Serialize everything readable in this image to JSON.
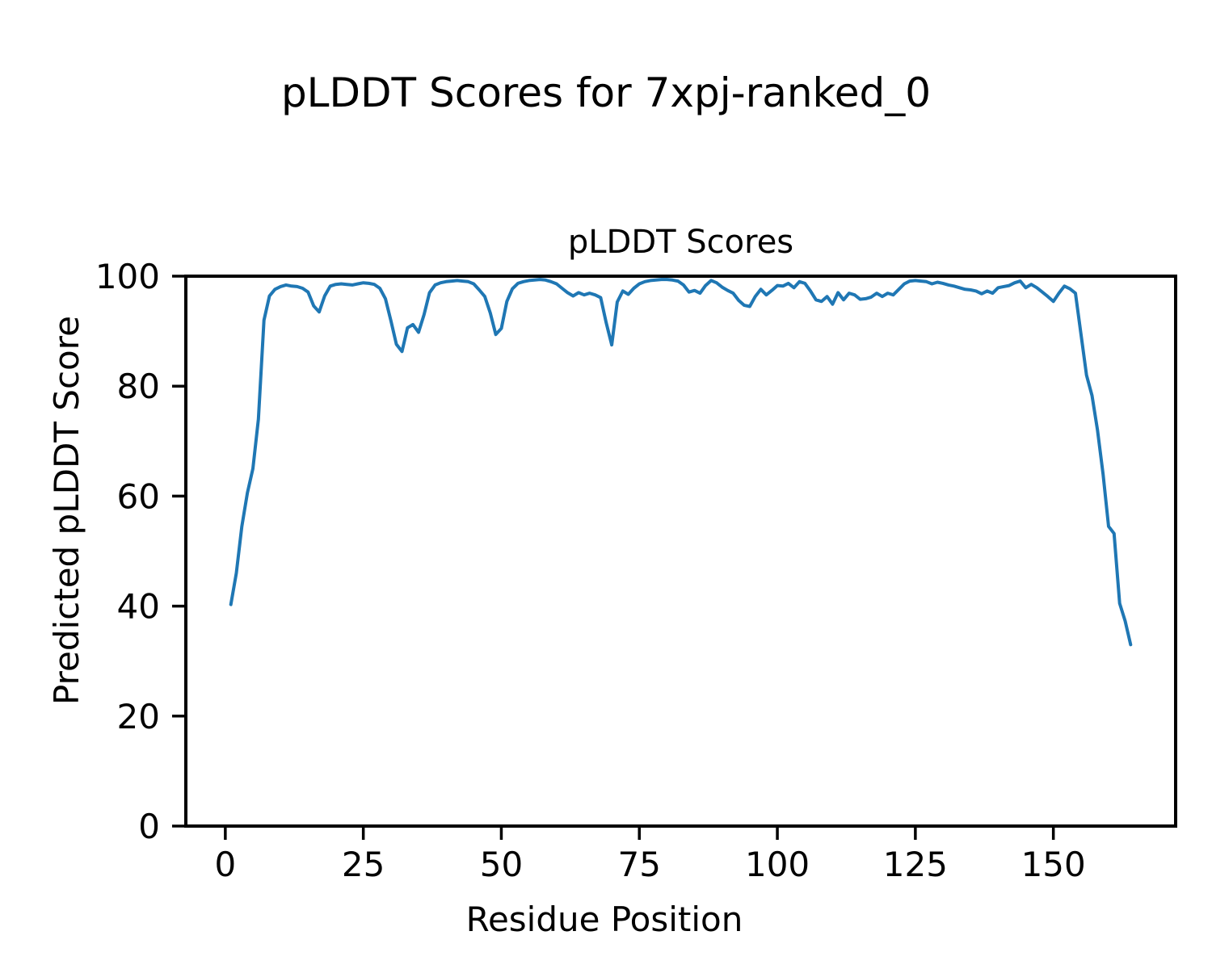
{
  "figure": {
    "suptitle": "pLDDT Scores for 7xpj-ranked_0"
  },
  "chart_data": {
    "type": "line",
    "title": "pLDDT Scores",
    "xlabel": "Residue Position",
    "ylabel": "Predicted pLDDT Score",
    "series_name": "pLDDT per residue",
    "line_color": "#1f77b4",
    "grid": false,
    "legend": "none",
    "xlim": [
      -7.15,
      172.15
    ],
    "ylim": [
      0,
      100
    ],
    "x_ticks": [
      0,
      25,
      50,
      75,
      100,
      125,
      150
    ],
    "y_ticks": [
      0,
      20,
      40,
      60,
      80,
      100
    ],
    "x_range": [
      1,
      164
    ],
    "y_values": [
      40.3,
      46.0,
      54.5,
      60.6,
      65.0,
      74.0,
      92.0,
      96.4,
      97.6,
      98.1,
      98.4,
      98.2,
      98.1,
      97.8,
      97.1,
      94.6,
      93.5,
      96.4,
      98.2,
      98.5,
      98.6,
      98.5,
      98.4,
      98.6,
      98.8,
      98.7,
      98.5,
      97.8,
      95.9,
      91.9,
      87.6,
      86.3,
      90.6,
      91.2,
      89.8,
      93.0,
      97.0,
      98.4,
      98.8,
      99.0,
      99.1,
      99.2,
      99.1,
      99.0,
      98.6,
      97.5,
      96.3,
      93.3,
      89.4,
      90.5,
      95.4,
      97.7,
      98.7,
      99.0,
      99.2,
      99.3,
      99.4,
      99.3,
      99.0,
      98.6,
      97.8,
      97.0,
      96.4,
      97.0,
      96.6,
      96.9,
      96.6,
      96.1,
      91.5,
      87.5,
      95.3,
      97.3,
      96.7,
      97.8,
      98.6,
      99.0,
      99.2,
      99.3,
      99.4,
      99.4,
      99.3,
      99.1,
      98.4,
      97.1,
      97.4,
      96.9,
      98.3,
      99.2,
      98.8,
      98.0,
      97.4,
      96.9,
      95.6,
      94.7,
      94.5,
      96.3,
      97.6,
      96.6,
      97.4,
      98.3,
      98.2,
      98.7,
      97.9,
      99.0,
      98.7,
      97.3,
      95.7,
      95.4,
      96.3,
      94.9,
      97.0,
      95.7,
      96.9,
      96.6,
      95.8,
      95.9,
      96.2,
      96.9,
      96.3,
      96.9,
      96.6,
      97.6,
      98.6,
      99.1,
      99.2,
      99.1,
      99.0,
      98.6,
      98.9,
      98.7,
      98.4,
      98.2,
      97.9,
      97.6,
      97.5,
      97.3,
      96.8,
      97.3,
      96.9,
      97.9,
      98.1,
      98.3,
      98.8,
      99.1,
      97.9,
      98.5,
      97.9,
      97.1,
      96.3,
      95.4,
      96.9,
      98.2,
      97.7,
      96.9,
      89.5,
      82.0,
      78.3,
      72.0,
      64.0,
      54.5,
      53.2,
      40.5,
      37.3,
      33.0
    ]
  }
}
